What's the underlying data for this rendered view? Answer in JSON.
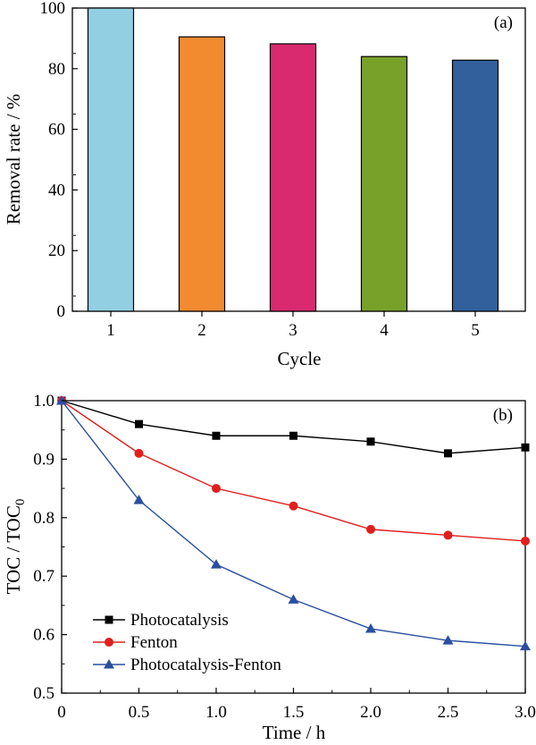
{
  "chart_data": [
    {
      "panel": "(a)",
      "type": "bar",
      "xlabel": "Cycle",
      "ylabel": "Removal rate / %",
      "categories": [
        "1",
        "2",
        "3",
        "4",
        "5"
      ],
      "values": [
        100,
        90.5,
        88.2,
        84,
        82.8
      ],
      "colors": [
        "#93cfe3",
        "#f28a30",
        "#d92a6f",
        "#78a12a",
        "#31609c"
      ],
      "ylim": [
        0,
        100
      ],
      "yticks": [
        0,
        20,
        40,
        60,
        80,
        100
      ],
      "grid": false
    },
    {
      "panel": "(b)",
      "type": "line",
      "xlabel": "Time / h",
      "ylabel_main": "TOC / TOC",
      "ylabel_sub": "0",
      "xlim": [
        0,
        3.0
      ],
      "ylim": [
        0.5,
        1.0
      ],
      "xticks": [
        "0",
        "0.5",
        "1.0",
        "1.5",
        "2.0",
        "2.5",
        "3.0"
      ],
      "yticks": [
        "0.5",
        "0.6",
        "0.7",
        "0.8",
        "0.9",
        "1.0"
      ],
      "legend_position": "bottom-left",
      "grid": false,
      "series": [
        {
          "name": "Photocatalysis",
          "marker": "square",
          "color": "#000000",
          "x": [
            0,
            0.5,
            1.0,
            1.5,
            2.0,
            2.5,
            3.0
          ],
          "y": [
            1.0,
            0.96,
            0.94,
            0.94,
            0.93,
            0.91,
            0.92
          ]
        },
        {
          "name": "Fenton",
          "marker": "circle",
          "color": "#e01e1e",
          "x": [
            0,
            0.5,
            1.0,
            1.5,
            2.0,
            2.5,
            3.0
          ],
          "y": [
            1.0,
            0.91,
            0.85,
            0.82,
            0.78,
            0.77,
            0.76
          ]
        },
        {
          "name": "Photocatalysis-Fenton",
          "marker": "triangle",
          "color": "#2a4fa0",
          "x": [
            0,
            0.5,
            1.0,
            1.5,
            2.0,
            2.5,
            3.0
          ],
          "y": [
            1.0,
            0.83,
            0.72,
            0.66,
            0.61,
            0.59,
            0.58
          ]
        }
      ]
    }
  ]
}
